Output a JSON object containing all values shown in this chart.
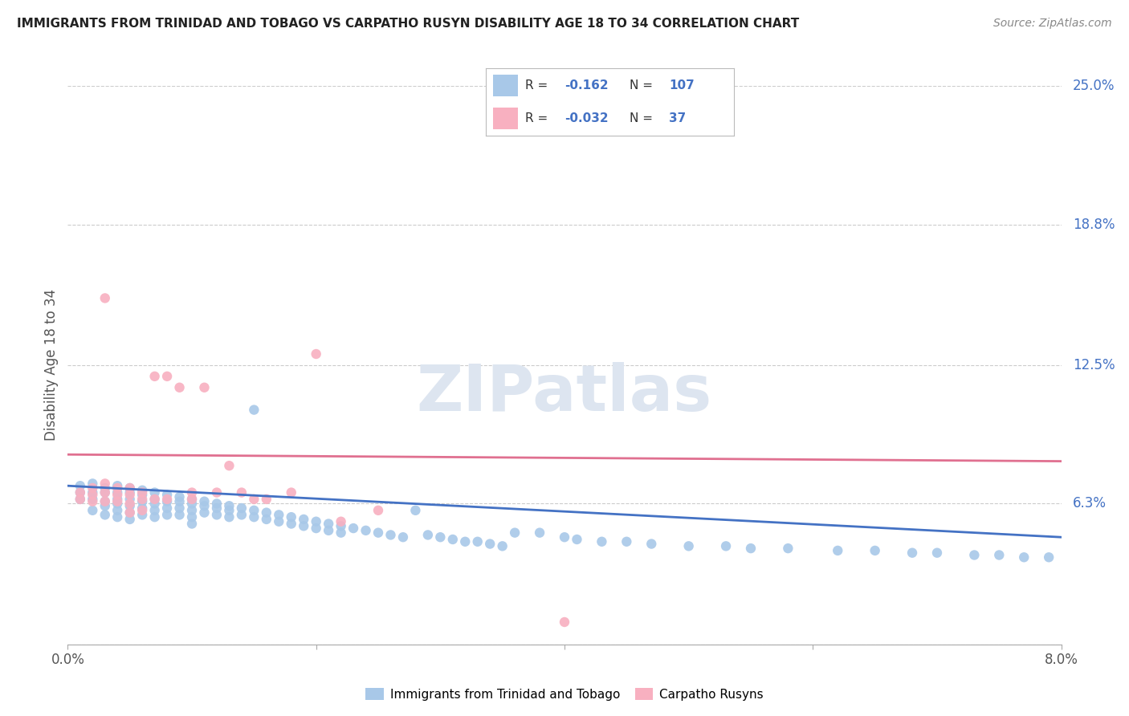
{
  "title": "IMMIGRANTS FROM TRINIDAD AND TOBAGO VS CARPATHO RUSYN DISABILITY AGE 18 TO 34 CORRELATION CHART",
  "source": "Source: ZipAtlas.com",
  "ylabel": "Disability Age 18 to 34",
  "x_min": 0.0,
  "x_max": 0.08,
  "y_min": 0.0,
  "y_max": 0.25,
  "y_ticks_right": [
    0.25,
    0.188,
    0.125,
    0.063,
    0.0
  ],
  "y_tick_labels_right": [
    "25.0%",
    "18.8%",
    "12.5%",
    "6.3%",
    ""
  ],
  "grid_color": "#cccccc",
  "background_color": "#ffffff",
  "watermark_text": "ZIPatlas",
  "watermark_color": "#dde5f0",
  "legend_R1": "-0.162",
  "legend_N1": "107",
  "legend_R2": "-0.032",
  "legend_N2": "37",
  "blue_color": "#a8c8e8",
  "pink_color": "#f8b0c0",
  "blue_line_color": "#4472c4",
  "pink_line_color": "#e07090",
  "label_color": "#4472c4",
  "scatter_blue_x": [
    0.001,
    0.001,
    0.001,
    0.002,
    0.002,
    0.002,
    0.002,
    0.003,
    0.003,
    0.003,
    0.003,
    0.003,
    0.004,
    0.004,
    0.004,
    0.004,
    0.004,
    0.004,
    0.005,
    0.005,
    0.005,
    0.005,
    0.005,
    0.005,
    0.006,
    0.006,
    0.006,
    0.006,
    0.006,
    0.007,
    0.007,
    0.007,
    0.007,
    0.007,
    0.008,
    0.008,
    0.008,
    0.008,
    0.009,
    0.009,
    0.009,
    0.009,
    0.01,
    0.01,
    0.01,
    0.01,
    0.01,
    0.011,
    0.011,
    0.011,
    0.012,
    0.012,
    0.012,
    0.013,
    0.013,
    0.013,
    0.014,
    0.014,
    0.015,
    0.015,
    0.015,
    0.016,
    0.016,
    0.017,
    0.017,
    0.018,
    0.018,
    0.019,
    0.019,
    0.02,
    0.02,
    0.021,
    0.021,
    0.022,
    0.022,
    0.023,
    0.024,
    0.025,
    0.026,
    0.027,
    0.028,
    0.029,
    0.03,
    0.031,
    0.032,
    0.033,
    0.034,
    0.035,
    0.036,
    0.038,
    0.04,
    0.041,
    0.043,
    0.045,
    0.047,
    0.05,
    0.053,
    0.055,
    0.058,
    0.062,
    0.065,
    0.068,
    0.07,
    0.073,
    0.075,
    0.077,
    0.079
  ],
  "scatter_blue_y": [
    0.071,
    0.068,
    0.065,
    0.072,
    0.068,
    0.065,
    0.06,
    0.07,
    0.068,
    0.064,
    0.062,
    0.058,
    0.071,
    0.068,
    0.065,
    0.063,
    0.06,
    0.057,
    0.07,
    0.068,
    0.065,
    0.062,
    0.059,
    0.056,
    0.069,
    0.067,
    0.064,
    0.061,
    0.058,
    0.068,
    0.065,
    0.063,
    0.06,
    0.057,
    0.067,
    0.064,
    0.061,
    0.058,
    0.066,
    0.064,
    0.061,
    0.058,
    0.065,
    0.063,
    0.06,
    0.057,
    0.054,
    0.064,
    0.062,
    0.059,
    0.063,
    0.061,
    0.058,
    0.062,
    0.06,
    0.057,
    0.061,
    0.058,
    0.105,
    0.06,
    0.057,
    0.059,
    0.056,
    0.058,
    0.055,
    0.057,
    0.054,
    0.056,
    0.053,
    0.055,
    0.052,
    0.054,
    0.051,
    0.053,
    0.05,
    0.052,
    0.051,
    0.05,
    0.049,
    0.048,
    0.06,
    0.049,
    0.048,
    0.047,
    0.046,
    0.046,
    0.045,
    0.044,
    0.05,
    0.05,
    0.048,
    0.047,
    0.046,
    0.046,
    0.045,
    0.044,
    0.044,
    0.043,
    0.043,
    0.042,
    0.042,
    0.041,
    0.041,
    0.04,
    0.04,
    0.039,
    0.039
  ],
  "scatter_pink_x": [
    0.001,
    0.001,
    0.002,
    0.002,
    0.002,
    0.003,
    0.003,
    0.003,
    0.003,
    0.004,
    0.004,
    0.004,
    0.005,
    0.005,
    0.005,
    0.005,
    0.006,
    0.006,
    0.006,
    0.007,
    0.007,
    0.008,
    0.008,
    0.009,
    0.01,
    0.01,
    0.011,
    0.012,
    0.013,
    0.014,
    0.015,
    0.016,
    0.018,
    0.02,
    0.022,
    0.025,
    0.04
  ],
  "scatter_pink_y": [
    0.068,
    0.065,
    0.07,
    0.067,
    0.064,
    0.155,
    0.072,
    0.068,
    0.064,
    0.07,
    0.067,
    0.064,
    0.07,
    0.067,
    0.063,
    0.059,
    0.068,
    0.065,
    0.06,
    0.12,
    0.065,
    0.12,
    0.065,
    0.115,
    0.068,
    0.065,
    0.115,
    0.068,
    0.08,
    0.068,
    0.065,
    0.065,
    0.068,
    0.13,
    0.055,
    0.06,
    0.01
  ],
  "blue_trend_x": [
    0.0,
    0.08
  ],
  "blue_trend_y": [
    0.071,
    0.048
  ],
  "pink_trend_x": [
    0.0,
    0.08
  ],
  "pink_trend_y": [
    0.085,
    0.082
  ]
}
